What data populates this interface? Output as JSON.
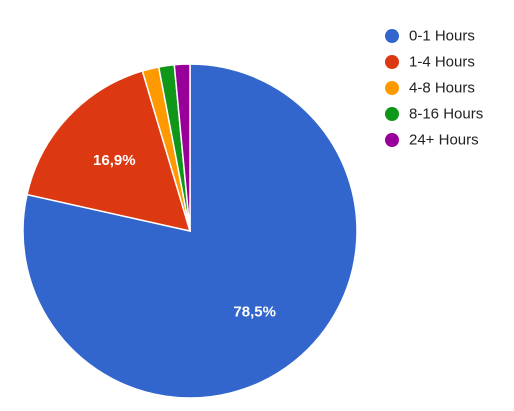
{
  "chart_data": {
    "type": "pie",
    "start_angle_deg": 0,
    "direction": "clockwise",
    "slices": [
      {
        "name": "0-1 Hours",
        "value": 78.5,
        "label": "78,5%",
        "color": "#3366cc"
      },
      {
        "name": "1-4 Hours",
        "value": 16.9,
        "label": "16,9%",
        "color": "#dc3912"
      },
      {
        "name": "4-8 Hours",
        "value": 1.6,
        "label": "",
        "color": "#ff9900"
      },
      {
        "name": "8-16 Hours",
        "value": 1.5,
        "label": "",
        "color": "#109618"
      },
      {
        "name": "24+ Hours",
        "value": 1.5,
        "label": "",
        "color": "#990099"
      }
    ],
    "legend": {
      "placement": "right",
      "entries": [
        "0-1 Hours",
        "1-4 Hours",
        "4-8 Hours",
        "8-16 Hours",
        "24+ Hours"
      ]
    }
  }
}
